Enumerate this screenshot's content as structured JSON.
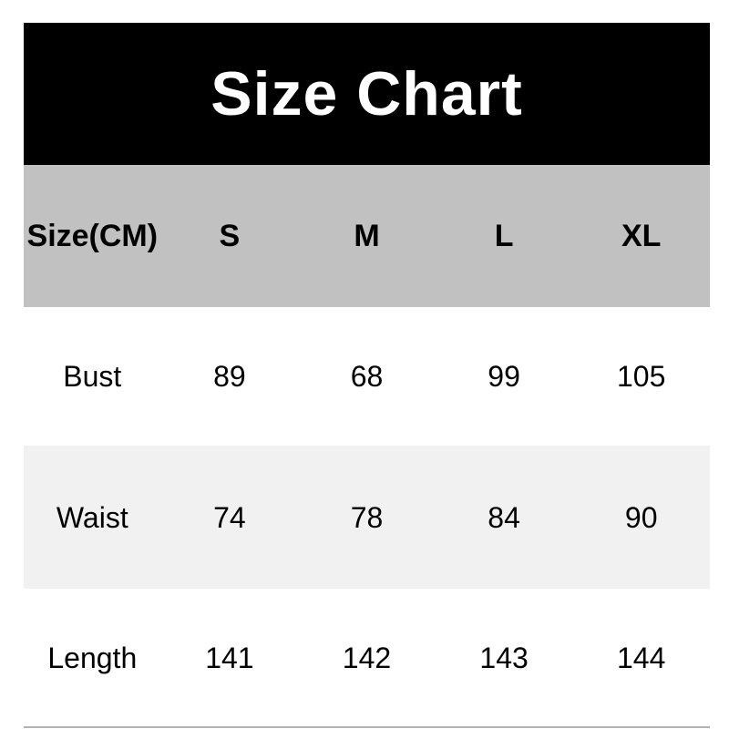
{
  "title": "Size Chart",
  "table": {
    "unit_header": "Size(CM)",
    "size_columns": [
      "S",
      "M",
      "L",
      "XL"
    ],
    "rows": [
      {
        "label": "Bust",
        "values": [
          "89",
          "68",
          "99",
          "105"
        ]
      },
      {
        "label": "Waist",
        "values": [
          "74",
          "78",
          "84",
          "90"
        ]
      },
      {
        "label": "Length",
        "values": [
          "141",
          "142",
          "143",
          "144"
        ]
      }
    ]
  },
  "colors": {
    "title_bg": "#000000",
    "title_text": "#ffffff",
    "header_bg": "#c1c1c1",
    "row_bg": "#ffffff",
    "row_alt_bg": "#f1f1f1",
    "text": "#000000",
    "bottom_rule": "#b3b3b3"
  },
  "chart_data": {
    "type": "table",
    "title": "Size Chart",
    "unit": "CM",
    "columns": [
      "Size(CM)",
      "S",
      "M",
      "L",
      "XL"
    ],
    "rows": [
      [
        "Bust",
        89,
        68,
        99,
        105
      ],
      [
        "Waist",
        74,
        78,
        84,
        90
      ],
      [
        "Length",
        141,
        142,
        143,
        144
      ]
    ]
  }
}
